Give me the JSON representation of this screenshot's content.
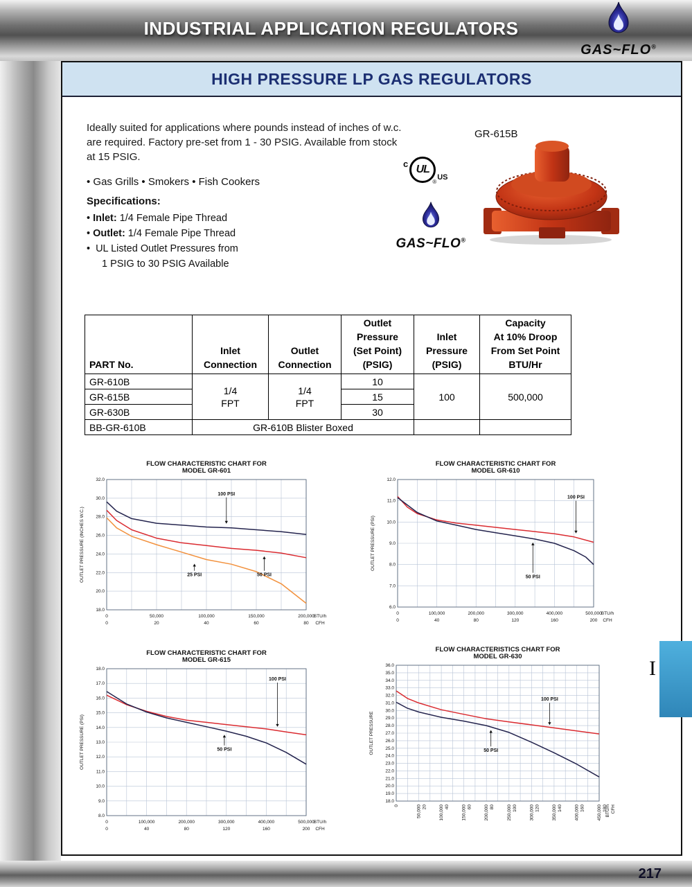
{
  "header": {
    "title": "INDUSTRIAL APPLICATION REGULATORS"
  },
  "brand": {
    "name": "GAS~FLO",
    "reg": "®"
  },
  "page": {
    "number": "217",
    "side_tab": "I"
  },
  "colors": {
    "banner_bg": "#cfe2f1",
    "banner_text": "#1c2f72",
    "tab_blue": "#3ea2d2",
    "regulator_red": "#c63a1a",
    "flame_blue": "#2c2c9a"
  },
  "section": {
    "title": "HIGH PRESSURE LP GAS REGULATORS",
    "intro": [
      "Ideally suited for applications where pounds instead of inches of w.c.",
      "are required. Factory pre-set from 1 - 30 PSIG. Available from stock",
      "at 15 PSIG."
    ],
    "applications": "• Gas Grills • Smokers • Fish Cookers",
    "product_label": "GR-615B",
    "specs_heading": "Specifications:",
    "specs": [
      {
        "bullet": "•",
        "bold": "Inlet:",
        "text": "1/4 Female Pipe Thread"
      },
      {
        "bullet": "•",
        "bold": "Outlet:",
        "text": "1/4 Female Pipe Thread"
      },
      {
        "bullet": "•",
        "bold": "",
        "text": "UL Listed Outlet Pressures from"
      },
      {
        "bullet": "",
        "bold": "",
        "text": "1 PSIG to 30 PSIG Available"
      }
    ],
    "ul_mark": {
      "left": "c",
      "center": "UL",
      "right": "US",
      "reg": "®"
    }
  },
  "table": {
    "headers": {
      "part": [
        "PART No."
      ],
      "inlet_conn": [
        "Inlet",
        "Connection"
      ],
      "outlet_conn": [
        "Outlet",
        "Connection"
      ],
      "set_point": [
        "Outlet",
        "Pressure",
        "(Set Point)",
        "(PSIG)"
      ],
      "inlet_pressure": [
        "Inlet",
        "Pressure",
        "(PSIG)"
      ],
      "capacity": [
        "Capacity",
        "At 10% Droop",
        "From Set Point",
        "BTU/Hr"
      ]
    },
    "rows": [
      {
        "part": "GR-610B",
        "set_point": "10"
      },
      {
        "part": "GR-615B",
        "set_point": "15"
      },
      {
        "part": "GR-630B",
        "set_point": "30"
      }
    ],
    "merged": {
      "inlet_conn": [
        "1/4",
        "FPT"
      ],
      "outlet_conn": [
        "1/4",
        "FPT"
      ],
      "inlet_pressure": "100",
      "capacity": "500,000"
    },
    "blister": {
      "part": "BB-GR-610B",
      "note": "GR-610B Blister Boxed"
    }
  },
  "chart_data": [
    {
      "type": "line",
      "title": [
        "FLOW CHARACTERISTIC CHART FOR",
        "MODEL GR-601"
      ],
      "ylabel": "OUTLET PRESSURE (INCHES W.C.)",
      "ymin": 18.0,
      "ymax": 32.0,
      "ystep": 2.0,
      "xmin": 0,
      "xmax": 200000,
      "xgrid": 8,
      "xunit": [
        "BTU/h",
        "CFH"
      ],
      "rotate_xticks": false,
      "xticks": [
        {
          "v": 0,
          "btu": "0",
          "cfh": "0"
        },
        {
          "v": 50000,
          "btu": "50,000",
          "cfh": "20"
        },
        {
          "v": 100000,
          "btu": "100,000",
          "cfh": "40"
        },
        {
          "v": 150000,
          "btu": "150,000",
          "cfh": "60"
        },
        {
          "v": 200000,
          "btu": "200,000",
          "cfh": "80"
        }
      ],
      "series": [
        {
          "name": "100 PSI",
          "color": "#23234d",
          "points": [
            [
              0,
              29.6
            ],
            [
              10000,
              28.6
            ],
            [
              25000,
              27.8
            ],
            [
              50000,
              27.3
            ],
            [
              75000,
              27.1
            ],
            [
              100000,
              26.9
            ],
            [
              125000,
              26.8
            ],
            [
              150000,
              26.6
            ],
            [
              175000,
              26.4
            ],
            [
              200000,
              26.1
            ]
          ]
        },
        {
          "name": "50 PSI",
          "color": "#da2b30",
          "points": [
            [
              0,
              28.7
            ],
            [
              10000,
              27.6
            ],
            [
              25000,
              26.6
            ],
            [
              50000,
              25.7
            ],
            [
              75000,
              25.2
            ],
            [
              100000,
              24.9
            ],
            [
              125000,
              24.6
            ],
            [
              150000,
              24.4
            ],
            [
              175000,
              24.1
            ],
            [
              200000,
              23.6
            ]
          ]
        },
        {
          "name": "25 PSI",
          "color": "#f2913d",
          "points": [
            [
              0,
              27.9
            ],
            [
              10000,
              26.8
            ],
            [
              25000,
              25.9
            ],
            [
              50000,
              25.0
            ],
            [
              75000,
              24.2
            ],
            [
              100000,
              23.4
            ],
            [
              125000,
              22.9
            ],
            [
              150000,
              22.1
            ],
            [
              175000,
              20.8
            ],
            [
              200000,
              18.7
            ]
          ]
        }
      ],
      "annotations": [
        {
          "text": "100 PSI",
          "x": 120000,
          "y": 30.3,
          "ty": 27.1
        },
        {
          "text": "25 PSI",
          "x": 88000,
          "y": 21.6,
          "ty": 23.1
        },
        {
          "text": "50 PSI",
          "x": 158000,
          "y": 21.6,
          "ty": 23.9
        }
      ]
    },
    {
      "type": "line",
      "title": [
        "FLOW CHARACTERISTIC CHART FOR",
        "MODEL GR-610"
      ],
      "ylabel": "OUTLET PRESSURE (PSI)",
      "ymin": 6.0,
      "ymax": 12.0,
      "ystep": 1.0,
      "xmin": 0,
      "xmax": 500000,
      "xgrid": 10,
      "xunit": [
        "BTU/h",
        "CFH"
      ],
      "rotate_xticks": false,
      "xticks": [
        {
          "v": 0,
          "btu": "0",
          "cfh": "0"
        },
        {
          "v": 100000,
          "btu": "100,000",
          "cfh": "40"
        },
        {
          "v": 200000,
          "btu": "200,000",
          "cfh": "80"
        },
        {
          "v": 300000,
          "btu": "300,000",
          "cfh": "120"
        },
        {
          "v": 400000,
          "btu": "400,000",
          "cfh": "160"
        },
        {
          "v": 500000,
          "btu": "500,000",
          "cfh": "200"
        }
      ],
      "series": [
        {
          "name": "100 PSI",
          "color": "#da2b30",
          "points": [
            [
              0,
              11.2
            ],
            [
              25000,
              10.7
            ],
            [
              50000,
              10.4
            ],
            [
              100000,
              10.1
            ],
            [
              150000,
              9.95
            ],
            [
              200000,
              9.85
            ],
            [
              250000,
              9.75
            ],
            [
              300000,
              9.65
            ],
            [
              350000,
              9.55
            ],
            [
              400000,
              9.45
            ],
            [
              450000,
              9.3
            ],
            [
              500000,
              9.05
            ]
          ]
        },
        {
          "name": "50 PSI",
          "color": "#23234d",
          "points": [
            [
              0,
              11.15
            ],
            [
              50000,
              10.45
            ],
            [
              100000,
              10.05
            ],
            [
              150000,
              9.85
            ],
            [
              200000,
              9.65
            ],
            [
              250000,
              9.5
            ],
            [
              300000,
              9.35
            ],
            [
              350000,
              9.2
            ],
            [
              400000,
              9.0
            ],
            [
              450000,
              8.65
            ],
            [
              480000,
              8.35
            ],
            [
              500000,
              8.0
            ]
          ]
        }
      ],
      "annotations": [
        {
          "text": "100 PSI",
          "x": 455000,
          "y": 11.1,
          "ty": 9.4
        },
        {
          "text": "50 PSI",
          "x": 345000,
          "y": 7.35,
          "ty": 9.1
        }
      ]
    },
    {
      "type": "line",
      "title": [
        "FLOW CHARACTERISTIC CHART FOR",
        "MODEL GR-615"
      ],
      "ylabel": "OUTLET PRESSURE (PSI)",
      "ymin": 8.0,
      "ymax": 18.0,
      "ystep": 1.0,
      "xmin": 0,
      "xmax": 500000,
      "xgrid": 10,
      "xunit": [
        "BTU/h",
        "CFH"
      ],
      "rotate_xticks": false,
      "xticks": [
        {
          "v": 0,
          "btu": "0",
          "cfh": "0"
        },
        {
          "v": 100000,
          "btu": "100,000",
          "cfh": "40"
        },
        {
          "v": 200000,
          "btu": "200,000",
          "cfh": "80"
        },
        {
          "v": 300000,
          "btu": "300,000",
          "cfh": "120"
        },
        {
          "v": 400000,
          "btu": "400,000",
          "cfh": "160"
        },
        {
          "v": 500000,
          "btu": "500,000",
          "cfh": "200"
        }
      ],
      "series": [
        {
          "name": "100 PSI",
          "color": "#da2b30",
          "points": [
            [
              0,
              16.2
            ],
            [
              50000,
              15.55
            ],
            [
              100000,
              15.1
            ],
            [
              150000,
              14.75
            ],
            [
              200000,
              14.5
            ],
            [
              250000,
              14.35
            ],
            [
              300000,
              14.2
            ],
            [
              350000,
              14.05
            ],
            [
              400000,
              13.9
            ],
            [
              450000,
              13.7
            ],
            [
              500000,
              13.5
            ]
          ]
        },
        {
          "name": "50 PSI",
          "color": "#23234d",
          "points": [
            [
              0,
              16.45
            ],
            [
              50000,
              15.6
            ],
            [
              100000,
              15.05
            ],
            [
              150000,
              14.65
            ],
            [
              200000,
              14.35
            ],
            [
              250000,
              14.05
            ],
            [
              300000,
              13.75
            ],
            [
              350000,
              13.4
            ],
            [
              400000,
              12.95
            ],
            [
              450000,
              12.3
            ],
            [
              500000,
              11.5
            ]
          ]
        }
      ],
      "annotations": [
        {
          "text": "100 PSI",
          "x": 428000,
          "y": 17.2,
          "ty": 13.95
        },
        {
          "text": "50 PSI",
          "x": 295000,
          "y": 12.4,
          "ty": 13.6
        }
      ]
    },
    {
      "type": "line",
      "title": [
        "FLOW CHARACTERISTICS CHART FOR",
        "MODEL GR-630"
      ],
      "ylabel": "OUTLET PRESSURE",
      "ymin": 18.0,
      "ymax": 36.0,
      "ystep": 1.0,
      "xmin": 0,
      "xmax": 450000,
      "xgrid": 18,
      "xunit": [
        "BTU/h",
        "CFH"
      ],
      "rotate_xticks": true,
      "xticks": [
        {
          "v": 0,
          "btu": "0",
          "cfh": ""
        },
        {
          "v": 50000,
          "btu": "50,000",
          "cfh": "20"
        },
        {
          "v": 100000,
          "btu": "100,000",
          "cfh": "40"
        },
        {
          "v": 150000,
          "btu": "150,000",
          "cfh": "60"
        },
        {
          "v": 200000,
          "btu": "200,000",
          "cfh": "80"
        },
        {
          "v": 250000,
          "btu": "250,000",
          "cfh": "100"
        },
        {
          "v": 300000,
          "btu": "300,000",
          "cfh": "120"
        },
        {
          "v": 350000,
          "btu": "350,000",
          "cfh": "140"
        },
        {
          "v": 400000,
          "btu": "400,000",
          "cfh": "160"
        },
        {
          "v": 450000,
          "btu": "450,000",
          "cfh": "180"
        }
      ],
      "series": [
        {
          "name": "100 PSI",
          "color": "#da2b30",
          "points": [
            [
              0,
              32.6
            ],
            [
              25000,
              31.6
            ],
            [
              50000,
              31.0
            ],
            [
              100000,
              30.1
            ],
            [
              150000,
              29.5
            ],
            [
              200000,
              28.9
            ],
            [
              250000,
              28.5
            ],
            [
              300000,
              28.1
            ],
            [
              350000,
              27.7
            ],
            [
              400000,
              27.3
            ],
            [
              450000,
              26.9
            ]
          ]
        },
        {
          "name": "50 PSI",
          "color": "#23234d",
          "points": [
            [
              0,
              31.1
            ],
            [
              25000,
              30.3
            ],
            [
              50000,
              29.8
            ],
            [
              100000,
              29.1
            ],
            [
              150000,
              28.6
            ],
            [
              200000,
              28.0
            ],
            [
              250000,
              27.1
            ],
            [
              300000,
              25.8
            ],
            [
              350000,
              24.4
            ],
            [
              400000,
              22.9
            ],
            [
              450000,
              21.2
            ]
          ]
        }
      ],
      "annotations": [
        {
          "text": "100 PSI",
          "x": 340000,
          "y": 31.3,
          "ty": 27.9
        },
        {
          "text": "50 PSI",
          "x": 210000,
          "y": 24.5,
          "ty": 27.6
        }
      ]
    }
  ]
}
